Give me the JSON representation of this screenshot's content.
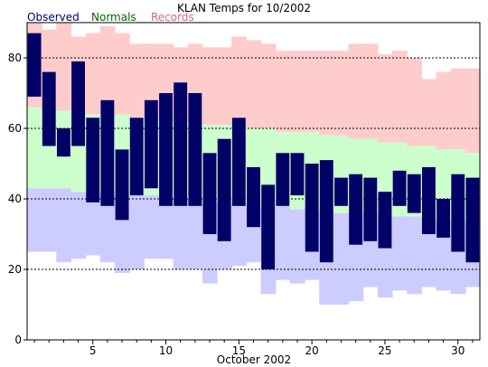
{
  "chart_data": {
    "type": "bar",
    "title": "KLAN Temps for 10/2002",
    "xlabel": "October 2002",
    "ylabel": "",
    "xlim": [
      0.5,
      31.5
    ],
    "ylim": [
      0,
      90
    ],
    "xticks": [
      5,
      10,
      15,
      20,
      25,
      30
    ],
    "yticks": [
      0,
      20,
      40,
      60,
      80
    ],
    "grid_values": [
      20,
      40,
      60,
      80
    ],
    "colors": {
      "observed": "#000066",
      "normals_band": "#ccffcc",
      "records_band": "#ffcccc",
      "low_records_band": "#ccccff",
      "observed_legend": "#000066",
      "normals_legend": "#006600",
      "records_legend": "#cc6699"
    },
    "legend": [
      "Observed",
      "Normals",
      "Records"
    ],
    "days": [
      1,
      2,
      3,
      4,
      5,
      6,
      7,
      8,
      9,
      10,
      11,
      12,
      13,
      14,
      15,
      16,
      17,
      18,
      19,
      20,
      21,
      22,
      23,
      24,
      25,
      26,
      27,
      28,
      29,
      30,
      31
    ],
    "observed_high": [
      87,
      76,
      60,
      79,
      63,
      68,
      54,
      63,
      68,
      70,
      73,
      70,
      53,
      57,
      63,
      49,
      44,
      53,
      53,
      50,
      51,
      46,
      47,
      46,
      42,
      48,
      47,
      49,
      40,
      47,
      46
    ],
    "observed_low": [
      69,
      55,
      52,
      55,
      39,
      38,
      34,
      41,
      43,
      38,
      38,
      38,
      30,
      28,
      38,
      32,
      20,
      38,
      41,
      25,
      22,
      38,
      27,
      28,
      26,
      38,
      36,
      30,
      29,
      25,
      22
    ],
    "normal_high": [
      66,
      65,
      65,
      64,
      64,
      64,
      64,
      63,
      63,
      62,
      62,
      62,
      61,
      61,
      61,
      60,
      60,
      59,
      59,
      59,
      58,
      58,
      57,
      57,
      56,
      56,
      55,
      55,
      54,
      54,
      53
    ],
    "normal_low": [
      43,
      43,
      43,
      42,
      42,
      42,
      41,
      41,
      41,
      40,
      40,
      40,
      39,
      39,
      39,
      38,
      38,
      38,
      37,
      37,
      37,
      36,
      36,
      36,
      35,
      35,
      35,
      34,
      34,
      34,
      33
    ],
    "record_high": [
      90,
      88,
      90,
      86,
      87,
      89,
      87,
      84,
      84,
      84,
      83,
      84,
      83,
      83,
      86,
      85,
      84,
      82,
      82,
      82,
      82,
      82,
      84,
      84,
      81,
      82,
      80,
      74,
      76,
      77,
      77
    ],
    "record_low": [
      25,
      25,
      22,
      23,
      24,
      22,
      19,
      20,
      23,
      23,
      20,
      20,
      16,
      20,
      21,
      22,
      13,
      17,
      16,
      17,
      10,
      10,
      11,
      15,
      12,
      14,
      13,
      15,
      14,
      13,
      15
    ]
  }
}
